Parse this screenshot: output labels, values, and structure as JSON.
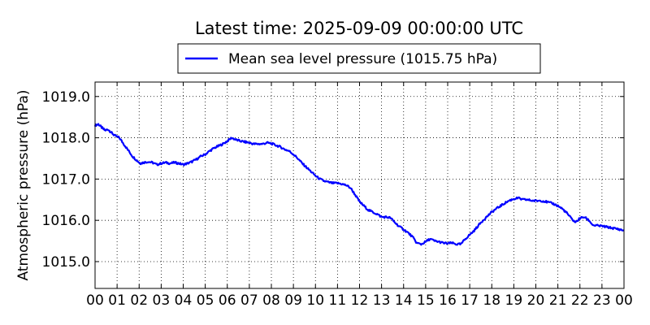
{
  "chart_data": {
    "type": "line",
    "title": "Latest time: 2025-09-09 00:00:00 UTC",
    "xlabel": "",
    "ylabel": "Atmospheric pressure (hPa)",
    "x_tick_labels": [
      "00",
      "01",
      "02",
      "03",
      "04",
      "05",
      "06",
      "07",
      "08",
      "09",
      "10",
      "11",
      "12",
      "13",
      "14",
      "15",
      "16",
      "17",
      "18",
      "19",
      "20",
      "21",
      "22",
      "23",
      "00"
    ],
    "x_unit": "hours UTC",
    "xlim": [
      0,
      24
    ],
    "ylim": [
      1014.35,
      1019.35
    ],
    "y_ticks": [
      1015.0,
      1016.0,
      1017.0,
      1018.0,
      1019.0
    ],
    "y_tick_labels": [
      "1015.0",
      "1016.0",
      "1017.0",
      "1018.0",
      "1019.0"
    ],
    "grid": true,
    "legend_position": "above plot, centered",
    "series": [
      {
        "name": "Mean sea level pressure (1015.75 hPa)",
        "color": "#0000ff",
        "points": [
          [
            0.0,
            1018.3
          ],
          [
            0.15,
            1018.33
          ],
          [
            0.3,
            1018.25
          ],
          [
            0.45,
            1018.18
          ],
          [
            0.6,
            1018.2
          ],
          [
            0.75,
            1018.12
          ],
          [
            0.9,
            1018.05
          ],
          [
            1.1,
            1018.0
          ],
          [
            1.3,
            1017.85
          ],
          [
            1.5,
            1017.7
          ],
          [
            1.7,
            1017.55
          ],
          [
            1.9,
            1017.45
          ],
          [
            2.05,
            1017.38
          ],
          [
            2.2,
            1017.4
          ],
          [
            2.4,
            1017.42
          ],
          [
            2.6,
            1017.4
          ],
          [
            2.8,
            1017.35
          ],
          [
            3.0,
            1017.38
          ],
          [
            3.2,
            1017.4
          ],
          [
            3.4,
            1017.38
          ],
          [
            3.6,
            1017.4
          ],
          [
            3.8,
            1017.38
          ],
          [
            4.0,
            1017.35
          ],
          [
            4.2,
            1017.38
          ],
          [
            4.4,
            1017.42
          ],
          [
            4.6,
            1017.48
          ],
          [
            4.8,
            1017.55
          ],
          [
            5.0,
            1017.6
          ],
          [
            5.2,
            1017.68
          ],
          [
            5.4,
            1017.75
          ],
          [
            5.6,
            1017.8
          ],
          [
            5.8,
            1017.85
          ],
          [
            6.0,
            1017.92
          ],
          [
            6.2,
            1018.0
          ],
          [
            6.4,
            1017.95
          ],
          [
            6.6,
            1017.92
          ],
          [
            6.8,
            1017.9
          ],
          [
            7.0,
            1017.88
          ],
          [
            7.2,
            1017.85
          ],
          [
            7.4,
            1017.85
          ],
          [
            7.6,
            1017.85
          ],
          [
            7.8,
            1017.88
          ],
          [
            8.0,
            1017.86
          ],
          [
            8.2,
            1017.82
          ],
          [
            8.4,
            1017.78
          ],
          [
            8.6,
            1017.72
          ],
          [
            8.8,
            1017.68
          ],
          [
            9.0,
            1017.6
          ],
          [
            9.2,
            1017.5
          ],
          [
            9.4,
            1017.38
          ],
          [
            9.6,
            1017.28
          ],
          [
            9.8,
            1017.18
          ],
          [
            10.0,
            1017.08
          ],
          [
            10.2,
            1017.0
          ],
          [
            10.4,
            1016.95
          ],
          [
            10.6,
            1016.92
          ],
          [
            10.8,
            1016.9
          ],
          [
            11.0,
            1016.9
          ],
          [
            11.2,
            1016.88
          ],
          [
            11.4,
            1016.85
          ],
          [
            11.6,
            1016.78
          ],
          [
            11.8,
            1016.62
          ],
          [
            12.0,
            1016.45
          ],
          [
            12.2,
            1016.35
          ],
          [
            12.4,
            1016.25
          ],
          [
            12.6,
            1016.2
          ],
          [
            12.8,
            1016.15
          ],
          [
            13.0,
            1016.08
          ],
          [
            13.2,
            1016.08
          ],
          [
            13.4,
            1016.06
          ],
          [
            13.6,
            1015.95
          ],
          [
            13.8,
            1015.85
          ],
          [
            14.0,
            1015.78
          ],
          [
            14.2,
            1015.7
          ],
          [
            14.4,
            1015.6
          ],
          [
            14.6,
            1015.45
          ],
          [
            14.8,
            1015.42
          ],
          [
            15.0,
            1015.48
          ],
          [
            15.2,
            1015.55
          ],
          [
            15.4,
            1015.5
          ],
          [
            15.6,
            1015.48
          ],
          [
            15.8,
            1015.45
          ],
          [
            16.0,
            1015.44
          ],
          [
            16.2,
            1015.45
          ],
          [
            16.4,
            1015.42
          ],
          [
            16.6,
            1015.42
          ],
          [
            16.8,
            1015.55
          ],
          [
            17.0,
            1015.65
          ],
          [
            17.2,
            1015.75
          ],
          [
            17.4,
            1015.88
          ],
          [
            17.6,
            1016.0
          ],
          [
            17.8,
            1016.1
          ],
          [
            18.0,
            1016.2
          ],
          [
            18.2,
            1016.28
          ],
          [
            18.4,
            1016.35
          ],
          [
            18.6,
            1016.42
          ],
          [
            18.8,
            1016.48
          ],
          [
            19.0,
            1016.52
          ],
          [
            19.2,
            1016.54
          ],
          [
            19.4,
            1016.5
          ],
          [
            19.6,
            1016.5
          ],
          [
            19.8,
            1016.48
          ],
          [
            20.0,
            1016.47
          ],
          [
            20.2,
            1016.48
          ],
          [
            20.4,
            1016.46
          ],
          [
            20.6,
            1016.43
          ],
          [
            20.8,
            1016.4
          ],
          [
            21.0,
            1016.35
          ],
          [
            21.2,
            1016.28
          ],
          [
            21.4,
            1016.18
          ],
          [
            21.6,
            1016.05
          ],
          [
            21.8,
            1015.95
          ],
          [
            22.0,
            1016.05
          ],
          [
            22.2,
            1016.08
          ],
          [
            22.4,
            1016.0
          ],
          [
            22.6,
            1015.88
          ],
          [
            22.8,
            1015.87
          ],
          [
            23.0,
            1015.86
          ],
          [
            23.2,
            1015.84
          ],
          [
            23.4,
            1015.82
          ],
          [
            23.6,
            1015.8
          ],
          [
            23.8,
            1015.78
          ],
          [
            24.0,
            1015.75
          ]
        ]
      }
    ]
  }
}
